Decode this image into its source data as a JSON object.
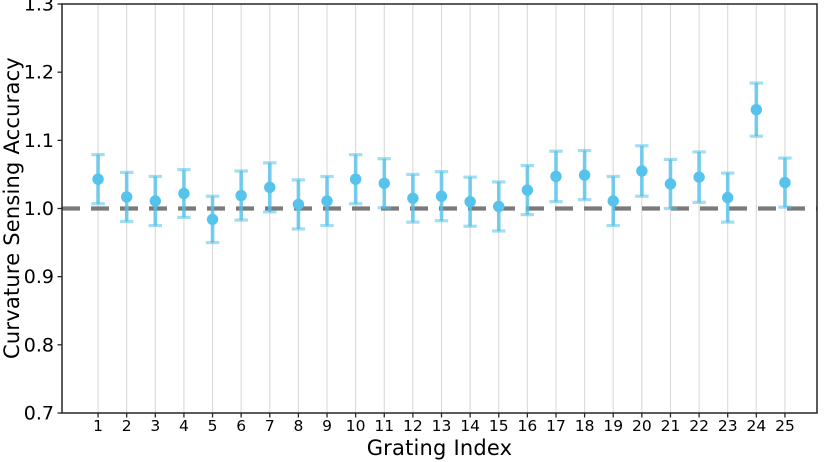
{
  "figure": {
    "background": "#ffffff"
  },
  "chart_data": {
    "type": "scatter",
    "title": "",
    "xlabel": "Grating Index",
    "ylabel": "Curvature Sensing Accuracy",
    "x": [
      1,
      2,
      3,
      4,
      5,
      6,
      7,
      8,
      9,
      10,
      11,
      12,
      13,
      14,
      15,
      16,
      17,
      18,
      19,
      20,
      21,
      22,
      23,
      24,
      25
    ],
    "values": [
      1.043,
      1.017,
      1.011,
      1.022,
      0.984,
      1.019,
      1.031,
      1.006,
      1.011,
      1.043,
      1.037,
      1.015,
      1.018,
      1.01,
      1.003,
      1.027,
      1.047,
      1.049,
      1.011,
      1.055,
      1.036,
      1.046,
      1.016,
      1.145,
      1.038
    ],
    "errors": [
      0.036,
      0.036,
      0.036,
      0.035,
      0.034,
      0.036,
      0.036,
      0.036,
      0.036,
      0.036,
      0.036,
      0.035,
      0.036,
      0.036,
      0.036,
      0.036,
      0.037,
      0.036,
      0.036,
      0.037,
      0.036,
      0.037,
      0.036,
      0.039,
      0.036
    ],
    "reference_line_y": 1.0,
    "xlim": [
      -0.26,
      26.12
    ],
    "ylim": [
      0.7,
      1.3
    ],
    "xticks": [
      1,
      2,
      3,
      4,
      5,
      6,
      7,
      8,
      9,
      10,
      11,
      12,
      13,
      14,
      15,
      16,
      17,
      18,
      19,
      20,
      21,
      22,
      23,
      24,
      25
    ],
    "yticks": [
      0.7,
      0.8,
      0.9,
      1.0,
      1.1,
      1.2,
      1.3
    ],
    "ytick_labels": [
      "0.7",
      "0.8",
      "0.9",
      "1.0",
      "1.1",
      "1.2",
      "1.3"
    ],
    "grid": "vertical-only",
    "legend": "none",
    "colors": {
      "marker": "#55c3eb",
      "errorbar": "#55c3eb",
      "reference_line": "#7a7a7a",
      "gridline": "#d9d9d9",
      "axis": "#262626",
      "tick_label": "#000000"
    }
  }
}
